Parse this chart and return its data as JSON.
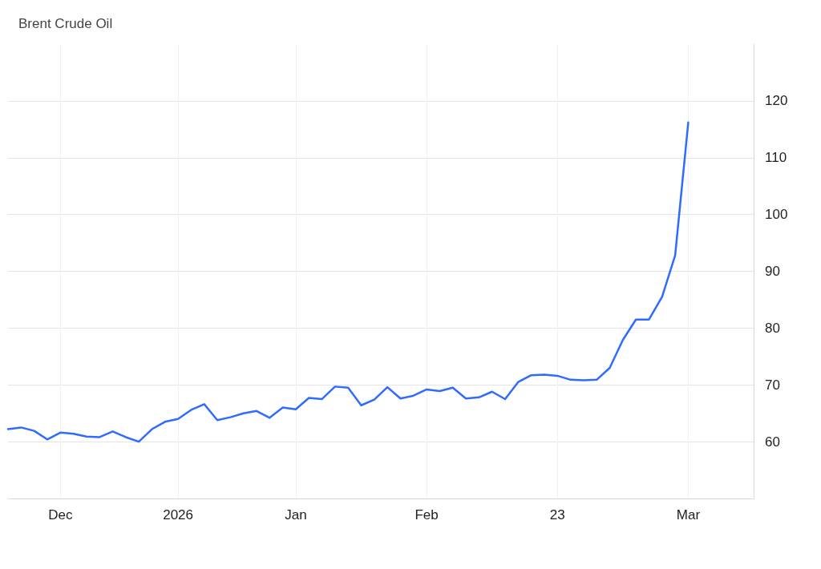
{
  "chart_data": {
    "type": "line",
    "title": "Brent Crude Oil",
    "categories": [
      null,
      null,
      null,
      null,
      "Dec",
      null,
      null,
      null,
      null,
      null,
      null,
      null,
      null,
      "2026",
      null,
      null,
      null,
      null,
      null,
      null,
      null,
      null,
      "Jan",
      null,
      null,
      null,
      null,
      null,
      null,
      null,
      null,
      null,
      "Feb",
      null,
      null,
      null,
      null,
      null,
      null,
      null,
      null,
      null,
      "23",
      null,
      null,
      null,
      null,
      null,
      null,
      null,
      null,
      null,
      "Mar",
      null,
      null,
      null,
      null,
      null
    ],
    "series": [
      {
        "color": "#2f6bff",
        "values": [
          62.2,
          62.5,
          61.9,
          60.4,
          61.6,
          61.4,
          60.9,
          60.8,
          61.8,
          60.8,
          60.0,
          62.2,
          63.5,
          64.0,
          65.6,
          66.6,
          63.8,
          64.3,
          65.0,
          65.4,
          64.2,
          66.0,
          65.7,
          67.7,
          67.5,
          69.7,
          69.5,
          66.4,
          67.4,
          69.6,
          67.6,
          68.1,
          69.2,
          68.9,
          69.5,
          67.6,
          67.8,
          68.8,
          67.5,
          70.5,
          71.7,
          71.8,
          71.6,
          70.9,
          70.8,
          70.9,
          73.0,
          77.9,
          81.5,
          81.5,
          85.5,
          92.8,
          116.2,
          null,
          null,
          null,
          null,
          null
        ]
      }
    ],
    "ylim": [
      50,
      130
    ],
    "yticks": [
      60,
      70,
      80,
      90,
      100,
      110,
      120
    ],
    "grid": true,
    "marker": "none",
    "line_style": "solid"
  }
}
